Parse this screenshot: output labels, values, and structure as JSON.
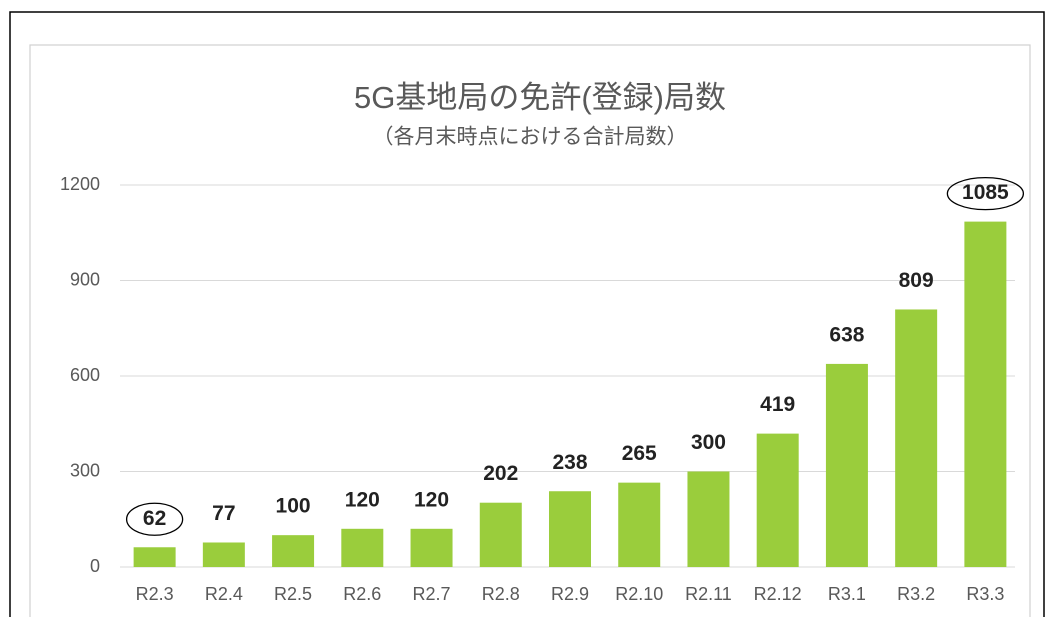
{
  "chart_data": {
    "type": "bar",
    "title": "5G基地局の免許(登録)局数",
    "subtitle": "（各月末時点における合計局数）",
    "categories": [
      "R2.3",
      "R2.4",
      "R2.5",
      "R2.6",
      "R2.7",
      "R2.8",
      "R2.9",
      "R2.10",
      "R2.11",
      "R2.12",
      "R3.1",
      "R3.2",
      "R3.3"
    ],
    "values": [
      62,
      77,
      100,
      120,
      120,
      202,
      238,
      265,
      300,
      419,
      638,
      809,
      1085
    ],
    "color": "#9acd3c",
    "ylim": [
      0,
      1200
    ],
    "yticks": [
      0,
      300,
      600,
      900,
      1200
    ],
    "grid": true
  }
}
